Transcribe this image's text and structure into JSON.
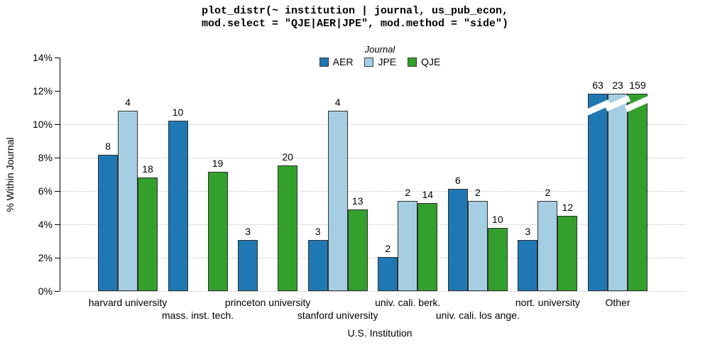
{
  "title": {
    "line1": "plot_distr(~ institution | journal, us_pub_econ,",
    "line2": "mod.select = \"QJE|AER|JPE\", mod.method = \"side\")"
  },
  "legend": {
    "title": "Journal",
    "entries": [
      {
        "label": "AER",
        "color": "#1F78B4"
      },
      {
        "label": "JPE",
        "color": "#A6CEE3"
      },
      {
        "label": "QJE",
        "color": "#33A02C"
      }
    ]
  },
  "axes": {
    "ylabel": "% Within Journal",
    "xlabel": "U.S. Institution",
    "y_tick_labels": [
      "0%",
      "2%",
      "4%",
      "6%",
      "8%",
      "10%",
      "12%",
      "14%"
    ],
    "ylim": [
      0,
      14
    ],
    "grid_percents": [
      0,
      2,
      4,
      6,
      8,
      10
    ]
  },
  "chart_data": {
    "type": "bar",
    "title": "plot_distr(~ institution | journal, us_pub_econ, mod.select = \"QJE|AER|JPE\", mod.method = \"side\")",
    "xlabel": "U.S. Institution",
    "ylabel": "% Within Journal",
    "ylim": [
      0,
      14
    ],
    "grid": "dotted horizontal at 0-10% every 2%",
    "legend_position": "top-center",
    "categories": [
      "harvard university",
      "mass. inst. tech.",
      "princeton university",
      "stanford university",
      "univ. cali. berk.",
      "univ. cali. los ange.",
      "nort. university",
      "Other"
    ],
    "category_label_rows": [
      0,
      1,
      0,
      1,
      0,
      1,
      0,
      0
    ],
    "series": [
      {
        "name": "AER",
        "color": "#1F78B4",
        "counts": [
          8,
          10,
          3,
          3,
          2,
          6,
          3,
          63
        ],
        "pct_drawn": [
          8.16,
          10.2,
          3.06,
          3.06,
          2.04,
          6.12,
          3.06,
          11.85
        ]
      },
      {
        "name": "JPE",
        "color": "#A6CEE3",
        "counts": [
          4,
          null,
          null,
          4,
          2,
          2,
          2,
          23
        ],
        "pct_drawn": [
          10.81,
          null,
          null,
          10.81,
          5.41,
          5.41,
          5.41,
          11.85
        ]
      },
      {
        "name": "QJE",
        "color": "#33A02C",
        "counts": [
          18,
          19,
          20,
          13,
          14,
          10,
          12,
          159
        ],
        "pct_drawn": [
          6.79,
          7.17,
          7.55,
          4.91,
          5.28,
          3.77,
          4.53,
          11.85
        ]
      }
    ],
    "truncated_categories": [
      "Other"
    ],
    "truncation_note": "Other bars are cut with white diagonal break marks near the top"
  }
}
